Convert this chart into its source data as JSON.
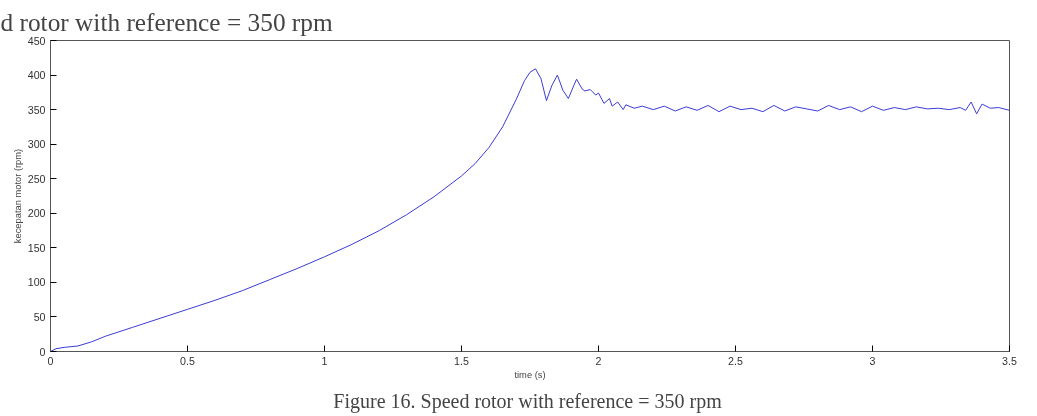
{
  "chart_data": {
    "type": "line",
    "xlabel": "time (s)",
    "ylabel": "kecepatan motor (rpm)",
    "annotations": [
      "d rotor with reference  = 350 rpm",
      "Figure 16. Speed rotor with reference  = 350 rpm"
    ],
    "xlim": [
      0,
      3.5
    ],
    "ylim": [
      0,
      450
    ],
    "xticks": [
      0,
      0.5,
      1,
      1.5,
      2,
      2.5,
      3,
      3.5
    ],
    "yticks": [
      0,
      50,
      100,
      150,
      200,
      250,
      300,
      350,
      400,
      450
    ],
    "line_style": "solid",
    "series": [
      {
        "color": "#3b3bd6",
        "x": [
          0,
          0.02,
          0.05,
          0.1,
          0.15,
          0.2,
          0.3,
          0.4,
          0.5,
          0.6,
          0.7,
          0.8,
          0.9,
          1.0,
          1.1,
          1.2,
          1.3,
          1.4,
          1.5,
          1.55,
          1.6,
          1.65,
          1.7,
          1.73,
          1.75,
          1.77,
          1.79,
          1.81,
          1.83,
          1.85,
          1.87,
          1.89,
          1.91,
          1.92,
          1.94,
          1.95,
          1.97,
          1.99,
          2.0,
          2.02,
          2.04,
          2.05,
          2.07,
          2.09,
          2.1,
          2.13,
          2.16,
          2.2,
          2.24,
          2.28,
          2.32,
          2.36,
          2.4,
          2.44,
          2.48,
          2.52,
          2.56,
          2.6,
          2.64,
          2.68,
          2.72,
          2.76,
          2.8,
          2.84,
          2.88,
          2.92,
          2.96,
          3.0,
          3.04,
          3.08,
          3.12,
          3.16,
          3.2,
          3.24,
          3.28,
          3.32,
          3.34,
          3.36,
          3.38,
          3.4,
          3.43,
          3.46,
          3.5
        ],
        "values": [
          0,
          4,
          6,
          8,
          14,
          22,
          35,
          48,
          61,
          74,
          88,
          104,
          120,
          137,
          155,
          175,
          198,
          224,
          254,
          272,
          295,
          325,
          365,
          392,
          404,
          409,
          395,
          363,
          385,
          400,
          378,
          366,
          385,
          394,
          380,
          377,
          379,
          371,
          374,
          359,
          366,
          355,
          361,
          350,
          357,
          352,
          355,
          350,
          355,
          348,
          354,
          349,
          356,
          347,
          355,
          350,
          352,
          347,
          356,
          348,
          354,
          351,
          348,
          356,
          350,
          354,
          347,
          355,
          349,
          353,
          350,
          354,
          351,
          352,
          350,
          353,
          349,
          361,
          344,
          358,
          352,
          353,
          349
        ]
      }
    ]
  }
}
